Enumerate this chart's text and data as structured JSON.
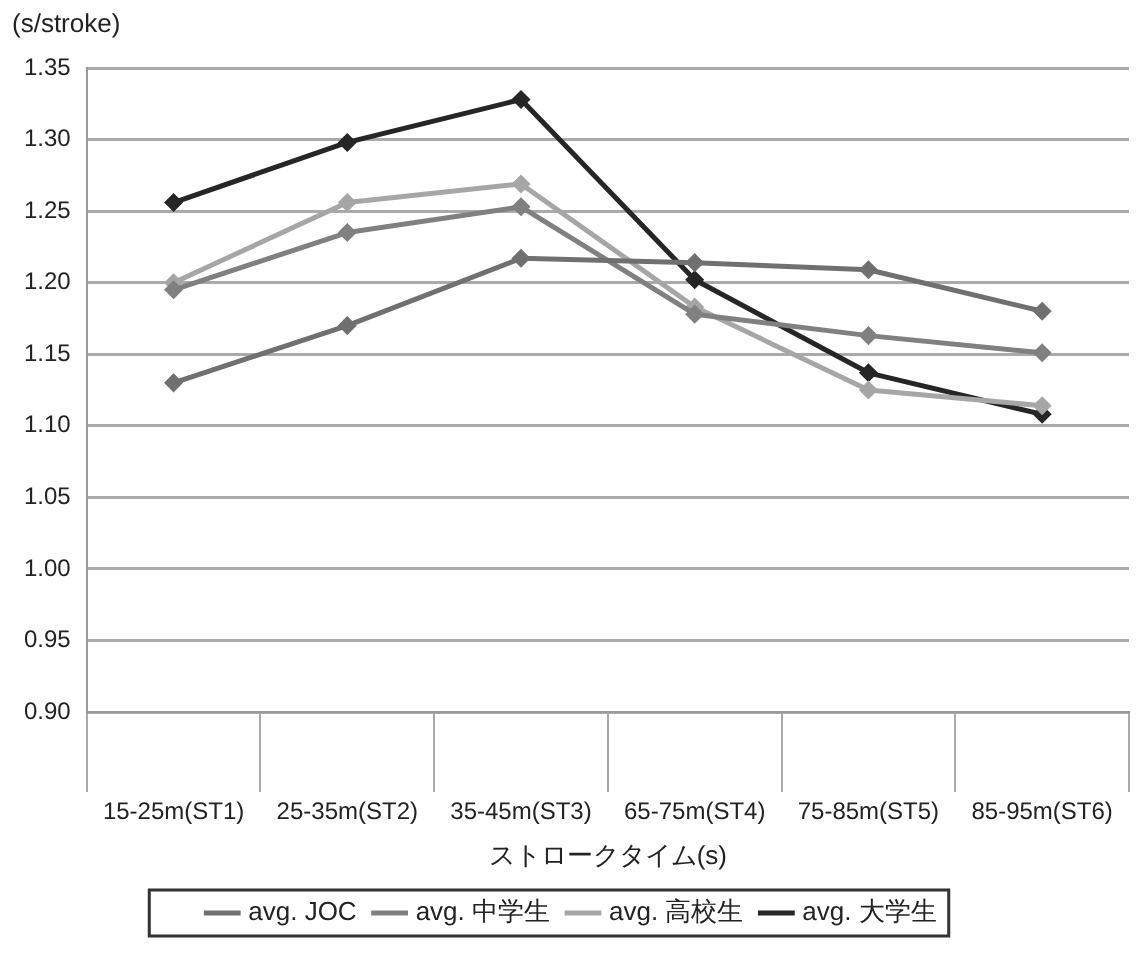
{
  "chart_data": {
    "type": "line",
    "ylabel": "(s/stroke)",
    "xlabel": "ストロークタイム(s)",
    "categories": [
      "15-25m(ST1)",
      "25-35m(ST2)",
      "35-45m(ST3)",
      "65-75m(ST4)",
      "75-85m(ST5)",
      "85-95m(ST6)"
    ],
    "series": [
      {
        "name": "avg. JOC",
        "color": "#707070",
        "values": [
          1.13,
          1.17,
          1.217,
          1.214,
          1.209,
          1.18
        ]
      },
      {
        "name": "avg. 中学生",
        "color": "#808080",
        "values": [
          1.195,
          1.235,
          1.253,
          1.178,
          1.163,
          1.151
        ]
      },
      {
        "name": "avg. 高校生",
        "color": "#a6a6a6",
        "values": [
          1.2,
          1.256,
          1.269,
          1.183,
          1.125,
          1.114
        ]
      },
      {
        "name": "avg. 大学生",
        "color": "#262626",
        "values": [
          1.256,
          1.298,
          1.328,
          1.202,
          1.137,
          1.108
        ]
      }
    ],
    "ylim": [
      0.9,
      1.35
    ],
    "yticks": [
      {
        "value": 0.9,
        "label": "0.90"
      },
      {
        "value": 0.95,
        "label": "0.95"
      },
      {
        "value": 1.0,
        "label": "1.00"
      },
      {
        "value": 1.05,
        "label": "1.05"
      },
      {
        "value": 1.1,
        "label": "1.10"
      },
      {
        "value": 1.15,
        "label": "1.15"
      },
      {
        "value": 1.2,
        "label": "1.20"
      },
      {
        "value": 1.25,
        "label": "1.25"
      },
      {
        "value": 1.3,
        "label": "1.30"
      },
      {
        "value": 1.35,
        "label": "1.35"
      }
    ],
    "grid": "y",
    "legend": "bottom",
    "marker": "diamond",
    "line_style": "solid"
  }
}
